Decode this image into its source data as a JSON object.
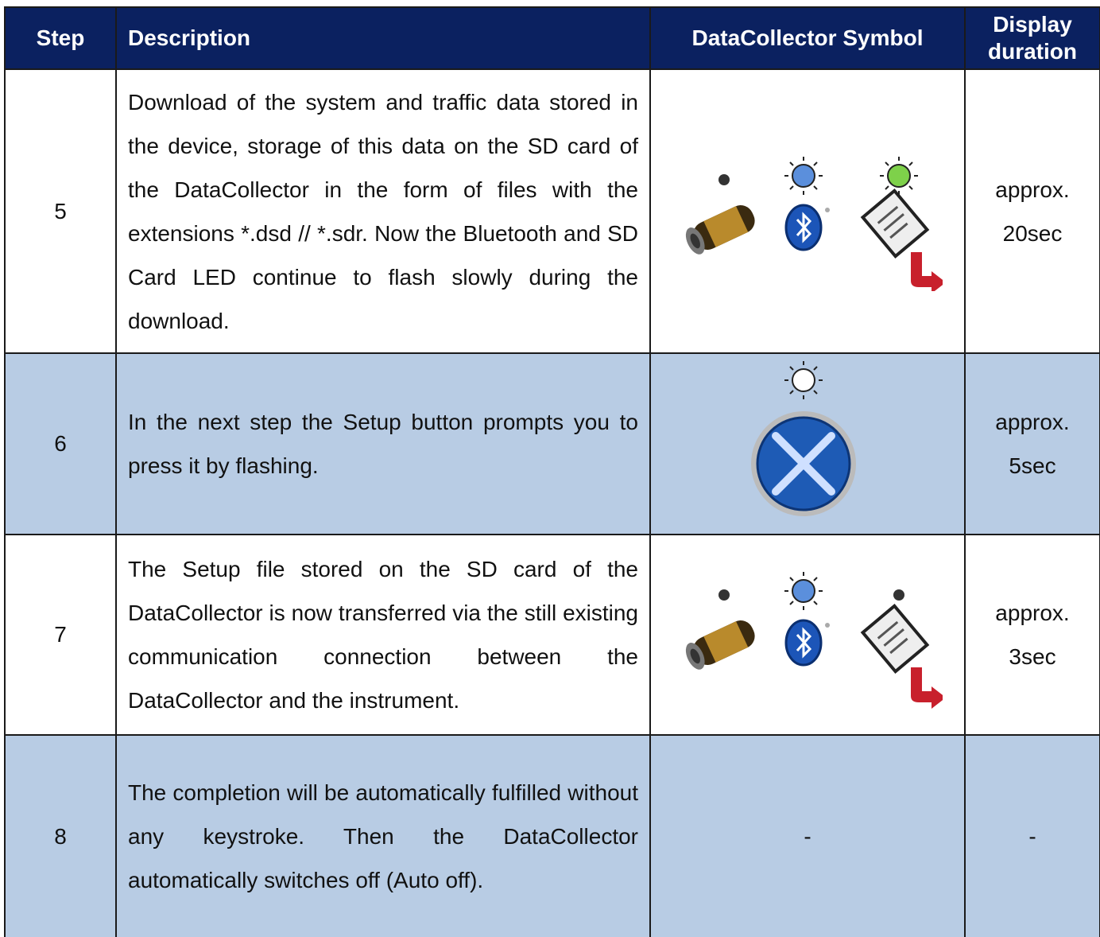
{
  "table": {
    "header": [
      "Step",
      "Description",
      "DataCollector Symbol",
      "Display duration"
    ],
    "rows": [
      {
        "step": "5",
        "description": "Download of the system and traffic data stored in the device, storage of this data on the SD card of the DataCollector in the form of files with the extensions *.dsd // *.sdr. Now the Bluetooth and SD Card LED continue to flash slowly during the download.",
        "duration": "approx. 20sec"
      },
      {
        "step": "6",
        "description": "In the next step the Setup button prompts you to press it by flashing.",
        "duration": "approx. 5sec"
      },
      {
        "step": "7",
        "description": "The Setup file stored on the SD card of the DataCollector is now transferred via the still existing communication connection between the DataCollector and the instrument.",
        "duration": "approx. 3sec"
      },
      {
        "step": "8",
        "description": "The completion will be automatically fulfilled without any keystroke. Then the DataCollector automatically switches off (Auto off).",
        "symbol": "-",
        "duration": "-"
      }
    ]
  }
}
